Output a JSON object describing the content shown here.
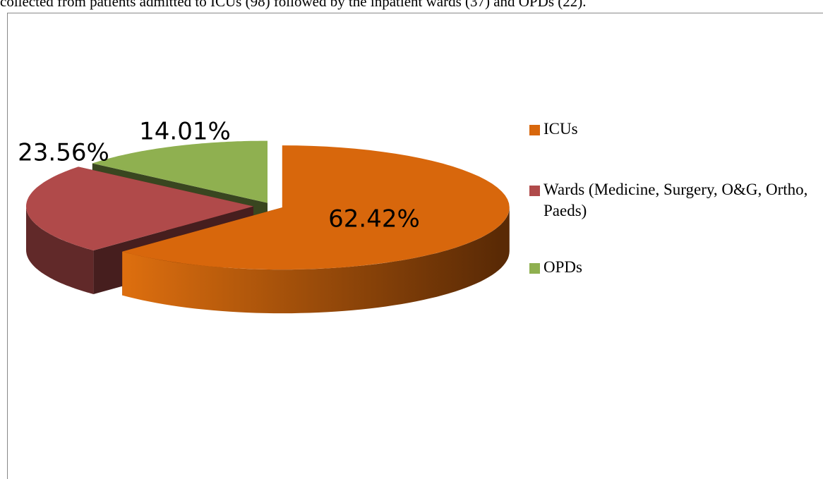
{
  "caption": "collected from patients admitted to ICUs (98) followed by the inpatient wards (37) and OPDs (22).",
  "chart_data": {
    "type": "pie",
    "categories": [
      "ICUs",
      "Wards (Medicine, Surgery, O&G, Ortho, Paeds)",
      "OPDs"
    ],
    "values": [
      62.42,
      23.56,
      14.01
    ],
    "value_labels": [
      "62.42%",
      "23.56%",
      "14.01%"
    ],
    "colors": [
      "#d8670c",
      "#b04a4a",
      "#8fb050"
    ],
    "legend": "right"
  }
}
